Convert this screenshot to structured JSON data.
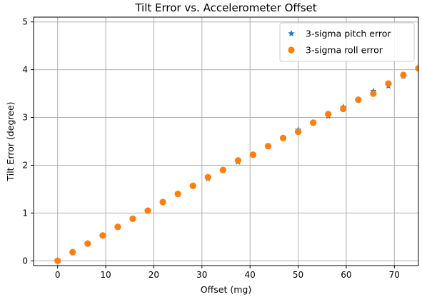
{
  "chart_data": {
    "type": "scatter",
    "title": "Tilt Error vs. Accelerometer Offset",
    "xlabel": "Offset (mg)",
    "ylabel": "Tilt Error (degree)",
    "xlim": [
      -5,
      75
    ],
    "ylim": [
      -0.1,
      5.1
    ],
    "x_ticks": [
      0,
      10,
      20,
      30,
      40,
      50,
      60,
      70
    ],
    "y_ticks": [
      0,
      1,
      2,
      3,
      4,
      5
    ],
    "grid": true,
    "legend_position": "top-right",
    "x": [
      0,
      3.125,
      6.25,
      9.375,
      12.5,
      15.625,
      18.75,
      21.875,
      25,
      28.125,
      31.25,
      34.375,
      37.5,
      40.625,
      43.75,
      46.875,
      50,
      53.125,
      56.25,
      59.375,
      62.5,
      65.625,
      68.75,
      71.875,
      75
    ],
    "series": [
      {
        "name": "3-sigma pitch error",
        "marker": "star",
        "color": "#1f77b4",
        "values": [
          0.0,
          0.18,
          0.36,
          0.53,
          0.71,
          0.88,
          1.05,
          1.23,
          1.4,
          1.57,
          1.72,
          1.9,
          2.07,
          2.22,
          2.4,
          2.57,
          2.74,
          2.89,
          3.03,
          3.22,
          3.37,
          3.55,
          3.66,
          3.86,
          4.03
        ]
      },
      {
        "name": "3-sigma roll error",
        "marker": "circle",
        "color": "#ff7f0e",
        "values": [
          0.0,
          0.18,
          0.36,
          0.53,
          0.71,
          0.88,
          1.05,
          1.23,
          1.4,
          1.57,
          1.75,
          1.9,
          2.1,
          2.22,
          2.4,
          2.57,
          2.7,
          2.89,
          3.07,
          3.18,
          3.37,
          3.5,
          3.71,
          3.89,
          4.03
        ]
      }
    ]
  }
}
